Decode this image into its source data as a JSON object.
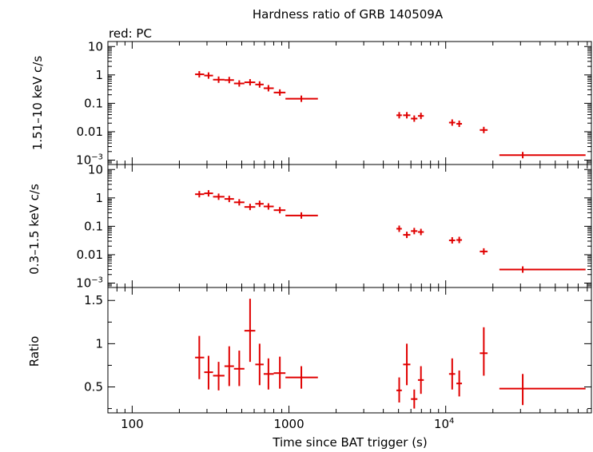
{
  "chart_data": {
    "type": "scatter",
    "title": "Hardness ratio of GRB 140509A",
    "legend_note": "red: PC",
    "xlabel": "Time since BAT trigger (s)",
    "xscale": "log",
    "xlim": [
      70,
      85000
    ],
    "xticks": [
      {
        "value": 100,
        "label": "100"
      },
      {
        "value": 1000,
        "label": "1000"
      },
      {
        "value": 10000,
        "label": "10",
        "sup": "4"
      }
    ],
    "panels": [
      {
        "id": "hard",
        "ylabel": "1.51–10 keV c/s",
        "yscale": "log",
        "ylim": [
          0.0007,
          15
        ],
        "yticks": [
          {
            "value": 10,
            "label": "10"
          },
          {
            "value": 1,
            "label": "1"
          },
          {
            "value": 0.1,
            "label": "0.1"
          },
          {
            "value": 0.01,
            "label": "0.01"
          },
          {
            "value": 0.001,
            "label": "10",
            "sup": "−3"
          }
        ],
        "series": [
          {
            "color": "#e00000",
            "points": [
              {
                "x": 268,
                "xlo": 252,
                "xhi": 288,
                "y": 1.05
              },
              {
                "x": 307,
                "xlo": 288,
                "xhi": 328,
                "y": 0.95
              },
              {
                "x": 356,
                "xlo": 328,
                "xhi": 388,
                "y": 0.68
              },
              {
                "x": 416,
                "xlo": 388,
                "xhi": 446,
                "y": 0.66
              },
              {
                "x": 482,
                "xlo": 446,
                "xhi": 520,
                "y": 0.5
              },
              {
                "x": 565,
                "xlo": 520,
                "xhi": 610,
                "y": 0.55
              },
              {
                "x": 650,
                "xlo": 610,
                "xhi": 690,
                "y": 0.46
              },
              {
                "x": 740,
                "xlo": 690,
                "xhi": 800,
                "y": 0.34
              },
              {
                "x": 875,
                "xlo": 800,
                "xhi": 950,
                "y": 0.24
              },
              {
                "x": 1200,
                "xlo": 950,
                "xhi": 1530,
                "y": 0.145
              },
              {
                "x": 5050,
                "xlo": 4850,
                "xhi": 5250,
                "y": 0.038
              },
              {
                "x": 5650,
                "xlo": 5350,
                "xhi": 5950,
                "y": 0.038
              },
              {
                "x": 6300,
                "xlo": 6000,
                "xhi": 6600,
                "y": 0.029
              },
              {
                "x": 6950,
                "xlo": 6650,
                "xhi": 7250,
                "y": 0.036
              },
              {
                "x": 11000,
                "xlo": 10500,
                "xhi": 11500,
                "y": 0.021
              },
              {
                "x": 12200,
                "xlo": 11700,
                "xhi": 12700,
                "y": 0.019
              },
              {
                "x": 17500,
                "xlo": 16500,
                "xhi": 18500,
                "y": 0.0115
              },
              {
                "x": 31000,
                "xlo": 22000,
                "xhi": 78000,
                "y": 0.0015
              }
            ]
          }
        ]
      },
      {
        "id": "soft",
        "ylabel": "0.3–1.5 keV c/s",
        "yscale": "log",
        "ylim": [
          0.0007,
          15
        ],
        "yticks": [
          {
            "value": 10,
            "label": "10"
          },
          {
            "value": 1,
            "label": "1"
          },
          {
            "value": 0.1,
            "label": "0.1"
          },
          {
            "value": 0.01,
            "label": "0.01"
          },
          {
            "value": 0.001,
            "label": "10",
            "sup": "−3"
          }
        ],
        "series": [
          {
            "color": "#e00000",
            "points": [
              {
                "x": 268,
                "xlo": 252,
                "xhi": 288,
                "y": 1.35
              },
              {
                "x": 307,
                "xlo": 288,
                "xhi": 328,
                "y": 1.45
              },
              {
                "x": 356,
                "xlo": 328,
                "xhi": 388,
                "y": 1.1
              },
              {
                "x": 416,
                "xlo": 388,
                "xhi": 446,
                "y": 0.92
              },
              {
                "x": 482,
                "xlo": 446,
                "xhi": 520,
                "y": 0.7
              },
              {
                "x": 565,
                "xlo": 520,
                "xhi": 610,
                "y": 0.48
              },
              {
                "x": 650,
                "xlo": 610,
                "xhi": 690,
                "y": 0.62
              },
              {
                "x": 740,
                "xlo": 690,
                "xhi": 800,
                "y": 0.5
              },
              {
                "x": 875,
                "xlo": 800,
                "xhi": 950,
                "y": 0.37
              },
              {
                "x": 1200,
                "xlo": 950,
                "xhi": 1530,
                "y": 0.24
              },
              {
                "x": 5050,
                "xlo": 4850,
                "xhi": 5250,
                "y": 0.082
              },
              {
                "x": 5650,
                "xlo": 5350,
                "xhi": 5950,
                "y": 0.05
              },
              {
                "x": 6300,
                "xlo": 6000,
                "xhi": 6600,
                "y": 0.068
              },
              {
                "x": 6950,
                "xlo": 6650,
                "xhi": 7250,
                "y": 0.063
              },
              {
                "x": 11000,
                "xlo": 10500,
                "xhi": 11500,
                "y": 0.032
              },
              {
                "x": 12200,
                "xlo": 11700,
                "xhi": 12700,
                "y": 0.033
              },
              {
                "x": 17500,
                "xlo": 16500,
                "xhi": 18500,
                "y": 0.013
              },
              {
                "x": 31000,
                "xlo": 22000,
                "xhi": 78000,
                "y": 0.003
              }
            ]
          }
        ]
      },
      {
        "id": "ratio",
        "ylabel": "Ratio",
        "yscale": "linear",
        "ylim": [
          0.2,
          1.65
        ],
        "yticks": [
          {
            "value": 1.5,
            "label": "1.5"
          },
          {
            "value": 1,
            "label": "1"
          },
          {
            "value": 0.5,
            "label": "0.5"
          }
        ],
        "series": [
          {
            "color": "#e00000",
            "points": [
              {
                "x": 268,
                "xlo": 252,
                "xhi": 288,
                "y": 0.84,
                "ylo": 0.59,
                "yhi": 1.09
              },
              {
                "x": 307,
                "xlo": 288,
                "xhi": 328,
                "y": 0.67,
                "ylo": 0.47,
                "yhi": 0.86
              },
              {
                "x": 356,
                "xlo": 328,
                "xhi": 388,
                "y": 0.63,
                "ylo": 0.46,
                "yhi": 0.79
              },
              {
                "x": 416,
                "xlo": 388,
                "xhi": 446,
                "y": 0.74,
                "ylo": 0.51,
                "yhi": 0.97
              },
              {
                "x": 482,
                "xlo": 446,
                "xhi": 520,
                "y": 0.71,
                "ylo": 0.51,
                "yhi": 0.92
              },
              {
                "x": 565,
                "xlo": 520,
                "xhi": 610,
                "y": 1.15,
                "ylo": 0.79,
                "yhi": 1.52
              },
              {
                "x": 650,
                "xlo": 610,
                "xhi": 690,
                "y": 0.76,
                "ylo": 0.52,
                "yhi": 1.0
              },
              {
                "x": 740,
                "xlo": 690,
                "xhi": 800,
                "y": 0.65,
                "ylo": 0.47,
                "yhi": 0.83
              },
              {
                "x": 875,
                "xlo": 800,
                "xhi": 950,
                "y": 0.66,
                "ylo": 0.48,
                "yhi": 0.85
              },
              {
                "x": 1200,
                "xlo": 950,
                "xhi": 1530,
                "y": 0.61,
                "ylo": 0.48,
                "yhi": 0.74
              },
              {
                "x": 5050,
                "xlo": 4850,
                "xhi": 5250,
                "y": 0.46,
                "ylo": 0.32,
                "yhi": 0.61
              },
              {
                "x": 5650,
                "xlo": 5350,
                "xhi": 5950,
                "y": 0.76,
                "ylo": 0.52,
                "yhi": 1.0
              },
              {
                "x": 6300,
                "xlo": 6000,
                "xhi": 6600,
                "y": 0.36,
                "ylo": 0.25,
                "yhi": 0.47
              },
              {
                "x": 6950,
                "xlo": 6650,
                "xhi": 7250,
                "y": 0.58,
                "ylo": 0.42,
                "yhi": 0.74
              },
              {
                "x": 11000,
                "xlo": 10500,
                "xhi": 11500,
                "y": 0.65,
                "ylo": 0.47,
                "yhi": 0.83
              },
              {
                "x": 12200,
                "xlo": 11700,
                "xhi": 12700,
                "y": 0.54,
                "ylo": 0.39,
                "yhi": 0.69
              },
              {
                "x": 17500,
                "xlo": 16500,
                "xhi": 18500,
                "y": 0.89,
                "ylo": 0.63,
                "yhi": 1.19
              },
              {
                "x": 31000,
                "xlo": 22000,
                "xhi": 78000,
                "y": 0.48,
                "ylo": 0.29,
                "yhi": 0.65
              }
            ]
          }
        ]
      }
    ]
  }
}
